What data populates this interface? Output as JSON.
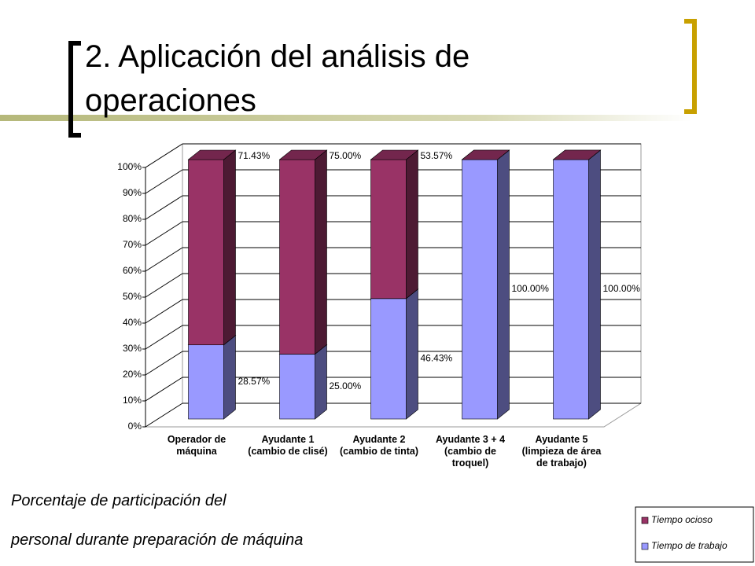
{
  "title": "2. Aplicación del análisis de operaciones",
  "caption": [
    "Porcentaje de participación del",
    "personal durante preparación de máquina"
  ],
  "chart_data": {
    "type": "bar",
    "stacked": true,
    "categories": [
      "Operador de máquina",
      "Ayudante 1 (cambio de clisé)",
      "Ayudante 2 (cambio de tinta)",
      "Ayudante 3 + 4 (cambio de troquel)",
      "Ayudante 5 (limpieza de área de trabajo)"
    ],
    "series": [
      {
        "name": "Tiempo de trabajo",
        "color": "#9999ff",
        "values": [
          28.57,
          25.0,
          46.43,
          100,
          100
        ],
        "value_labels": [
          "28.57%",
          "25.00%",
          "46.43%",
          "100.00%",
          "100.00%"
        ]
      },
      {
        "name": "Tiempo ocioso",
        "color": "#993366",
        "values": [
          71.43,
          75.0,
          53.57,
          0,
          0
        ],
        "value_labels": [
          "71.43%",
          "75.00%",
          "53.57%",
          null,
          null
        ]
      }
    ],
    "ylim": [
      0,
      100
    ],
    "yticks": [
      {
        "value": 0,
        "label": "0%"
      },
      {
        "value": 10,
        "label": "10%"
      },
      {
        "value": 20,
        "label": "20%"
      },
      {
        "value": 30,
        "label": "30%"
      },
      {
        "value": 40,
        "label": "40%"
      },
      {
        "value": 50,
        "label": "50%"
      },
      {
        "value": 60,
        "label": "60%"
      },
      {
        "value": 70,
        "label": "70%"
      },
      {
        "value": 80,
        "label": "80%"
      },
      {
        "value": 90,
        "label": "90%"
      },
      {
        "value": 100,
        "label": "100%"
      }
    ],
    "grid": true
  }
}
